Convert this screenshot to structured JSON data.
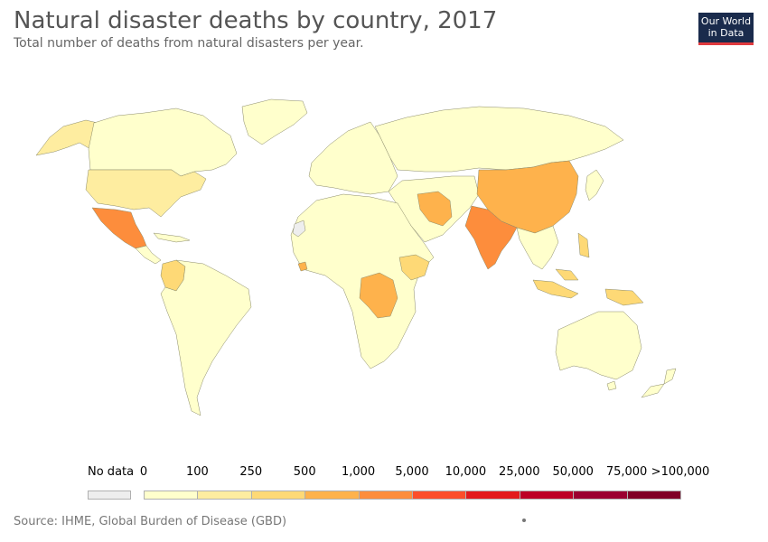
{
  "header": {
    "title": "Natural disaster deaths by country, 2017",
    "subtitle": "Total number of deaths from natural disasters per year."
  },
  "logo": {
    "line1": "Our World",
    "line2": "in Data",
    "background": "#1a2b4c",
    "accent": "#e03a3e"
  },
  "legend": {
    "no_data_label": "No data",
    "no_data_color": "#eeeeee",
    "bins": [
      {
        "label": "0",
        "color": "#ffffcc"
      },
      {
        "label": "100",
        "color": "#feeda0"
      },
      {
        "label": "250",
        "color": "#fed976"
      },
      {
        "label": "500",
        "color": "#feb24c"
      },
      {
        "label": "1,000",
        "color": "#fd8d3c"
      },
      {
        "label": "5,000",
        "color": "#fc4e2a"
      },
      {
        "label": "10,000",
        "color": "#e31a1c"
      },
      {
        "label": "25,000",
        "color": "#bd0026"
      },
      {
        "label": "50,000",
        "color": "#9b0030"
      },
      {
        "label": "75,000",
        "color": "#800026"
      }
    ],
    "last_label": ">100,000"
  },
  "map_regions": [
    {
      "name": "north-america",
      "color": "#ffffcc"
    },
    {
      "name": "alaska",
      "color": "#feeda0"
    },
    {
      "name": "usa",
      "color": "#feeda0"
    },
    {
      "name": "mexico",
      "color": "#fd8d3c"
    },
    {
      "name": "central-america",
      "color": "#ffffcc"
    },
    {
      "name": "greenland",
      "color": "#ffffcc"
    },
    {
      "name": "colombia",
      "color": "#fed976"
    },
    {
      "name": "south-america",
      "color": "#ffffcc"
    },
    {
      "name": "europe",
      "color": "#ffffcc"
    },
    {
      "name": "africa",
      "color": "#ffffcc"
    },
    {
      "name": "dr-congo",
      "color": "#feb24c"
    },
    {
      "name": "ethiopia",
      "color": "#fed976"
    },
    {
      "name": "sierra-leone",
      "color": "#feb24c"
    },
    {
      "name": "russia",
      "color": "#ffffcc"
    },
    {
      "name": "middle-east",
      "color": "#ffffcc"
    },
    {
      "name": "iran",
      "color": "#feb24c"
    },
    {
      "name": "china",
      "color": "#feb24c"
    },
    {
      "name": "india",
      "color": "#fd8d3c"
    },
    {
      "name": "southeast-asia",
      "color": "#ffffcc"
    },
    {
      "name": "indonesia",
      "color": "#fed976"
    },
    {
      "name": "australia",
      "color": "#ffffcc"
    },
    {
      "name": "new-zealand",
      "color": "#ffffcc"
    },
    {
      "name": "japan",
      "color": "#ffffcc"
    },
    {
      "name": "western-sahara",
      "color": "#eeeeee"
    }
  ],
  "footer": {
    "source": "Source: IHME, Global Burden of Disease (GBD)"
  }
}
